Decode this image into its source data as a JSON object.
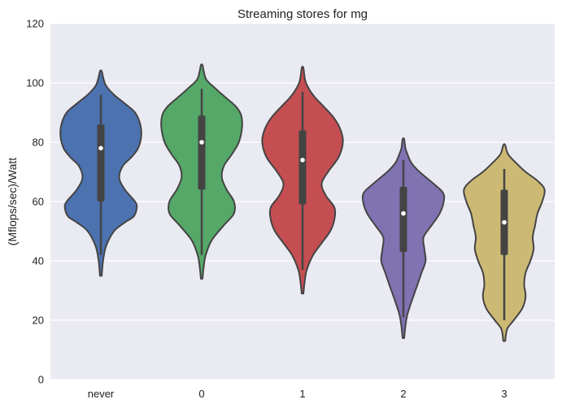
{
  "chart_data": {
    "type": "violin",
    "title": "Streaming stores for mg",
    "xlabel": "",
    "ylabel": "(Mflops/sec)/Watt",
    "ylim": [
      0,
      120
    ],
    "yticks": [
      0,
      20,
      40,
      60,
      80,
      100,
      120
    ],
    "grid": true,
    "legend": "none",
    "categories": [
      "never",
      "0",
      "1",
      "2",
      "3"
    ],
    "colors": [
      "#4c72b0",
      "#55a868",
      "#c44e52",
      "#8172b2",
      "#ccb974"
    ],
    "violins": [
      {
        "category": "never",
        "min": 35,
        "max": 104,
        "whisker_low": 42,
        "whisker_high": 96,
        "q1": 60,
        "median": 78,
        "q3": 86,
        "profile": [
          [
            35,
            0.02
          ],
          [
            40,
            0.05
          ],
          [
            45,
            0.12
          ],
          [
            50,
            0.3
          ],
          [
            53,
            0.55
          ],
          [
            55,
            0.75
          ],
          [
            58,
            0.82
          ],
          [
            60,
            0.78
          ],
          [
            64,
            0.55
          ],
          [
            68,
            0.42
          ],
          [
            72,
            0.5
          ],
          [
            75,
            0.7
          ],
          [
            78,
            0.85
          ],
          [
            82,
            0.92
          ],
          [
            86,
            0.9
          ],
          [
            90,
            0.78
          ],
          [
            93,
            0.55
          ],
          [
            96,
            0.3
          ],
          [
            99,
            0.12
          ],
          [
            102,
            0.05
          ],
          [
            104,
            0.02
          ]
        ]
      },
      {
        "category": "0",
        "min": 34,
        "max": 106,
        "whisker_low": 42,
        "whisker_high": 98,
        "q1": 64,
        "median": 80,
        "q3": 89,
        "profile": [
          [
            34,
            0.02
          ],
          [
            38,
            0.05
          ],
          [
            42,
            0.1
          ],
          [
            47,
            0.25
          ],
          [
            52,
            0.55
          ],
          [
            56,
            0.8
          ],
          [
            60,
            0.8
          ],
          [
            64,
            0.62
          ],
          [
            68,
            0.5
          ],
          [
            72,
            0.55
          ],
          [
            76,
            0.75
          ],
          [
            80,
            0.92
          ],
          [
            85,
            1.0
          ],
          [
            89,
            0.98
          ],
          [
            92,
            0.85
          ],
          [
            95,
            0.6
          ],
          [
            98,
            0.35
          ],
          [
            101,
            0.12
          ],
          [
            104,
            0.05
          ],
          [
            106,
            0.02
          ]
        ]
      },
      {
        "category": "1",
        "min": 29,
        "max": 105,
        "whisker_low": 37,
        "whisker_high": 97,
        "q1": 59,
        "median": 74,
        "q3": 84,
        "profile": [
          [
            29,
            0.02
          ],
          [
            33,
            0.05
          ],
          [
            37,
            0.1
          ],
          [
            42,
            0.25
          ],
          [
            46,
            0.45
          ],
          [
            50,
            0.65
          ],
          [
            54,
            0.75
          ],
          [
            58,
            0.75
          ],
          [
            62,
            0.55
          ],
          [
            66,
            0.45
          ],
          [
            70,
            0.6
          ],
          [
            75,
            0.85
          ],
          [
            80,
            0.95
          ],
          [
            84,
            0.9
          ],
          [
            88,
            0.75
          ],
          [
            92,
            0.5
          ],
          [
            95,
            0.3
          ],
          [
            98,
            0.15
          ],
          [
            101,
            0.06
          ],
          [
            105,
            0.02
          ]
        ]
      },
      {
        "category": "2",
        "min": 14,
        "max": 81,
        "whisker_low": 21,
        "whisker_high": 74,
        "q1": 43,
        "median": 56,
        "q3": 65,
        "profile": [
          [
            14,
            0.02
          ],
          [
            18,
            0.05
          ],
          [
            22,
            0.1
          ],
          [
            27,
            0.22
          ],
          [
            32,
            0.35
          ],
          [
            36,
            0.45
          ],
          [
            40,
            0.55
          ],
          [
            44,
            0.52
          ],
          [
            48,
            0.5
          ],
          [
            52,
            0.7
          ],
          [
            56,
            0.9
          ],
          [
            60,
            1.0
          ],
          [
            63,
            0.98
          ],
          [
            66,
            0.75
          ],
          [
            70,
            0.4
          ],
          [
            73,
            0.2
          ],
          [
            76,
            0.1
          ],
          [
            78,
            0.05
          ],
          [
            81,
            0.02
          ]
        ]
      },
      {
        "category": "3",
        "min": 13,
        "max": 79,
        "whisker_low": 20,
        "whisker_high": 71,
        "q1": 42,
        "median": 53,
        "q3": 64,
        "profile": [
          [
            13,
            0.02
          ],
          [
            17,
            0.06
          ],
          [
            20,
            0.2
          ],
          [
            24,
            0.38
          ],
          [
            28,
            0.45
          ],
          [
            32,
            0.42
          ],
          [
            36,
            0.45
          ],
          [
            40,
            0.55
          ],
          [
            44,
            0.62
          ],
          [
            48,
            0.6
          ],
          [
            52,
            0.65
          ],
          [
            56,
            0.7
          ],
          [
            60,
            0.8
          ],
          [
            64,
            0.85
          ],
          [
            67,
            0.7
          ],
          [
            70,
            0.45
          ],
          [
            73,
            0.25
          ],
          [
            76,
            0.08
          ],
          [
            79,
            0.02
          ]
        ]
      }
    ]
  }
}
